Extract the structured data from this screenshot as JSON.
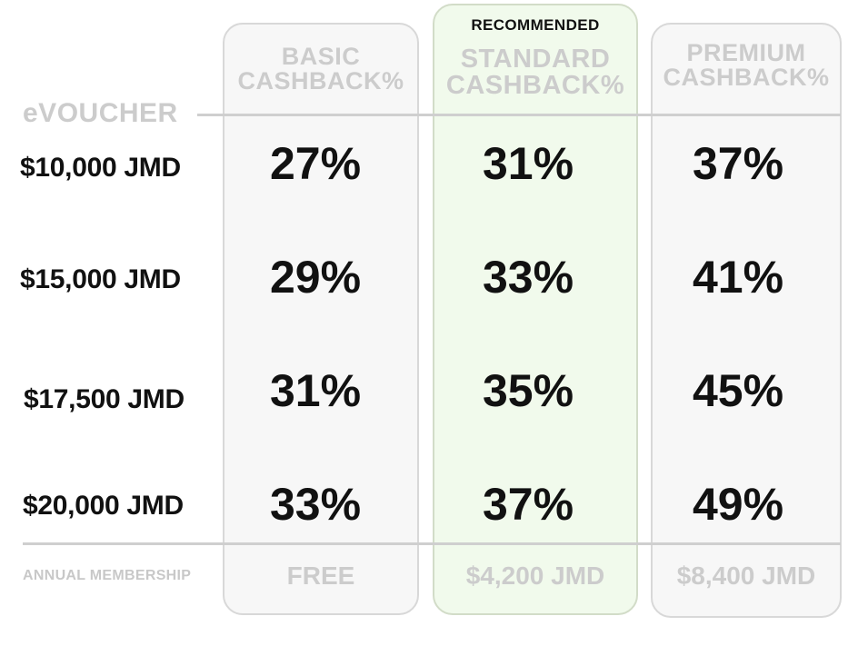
{
  "recommended_label": "RECOMMENDED",
  "row_header": "eVOUCHER",
  "plans": [
    {
      "title_line1": "BASIC",
      "title_line2": "CASHBACK%",
      "membership_price": "FREE",
      "recommended": false
    },
    {
      "title_line1": "STANDARD",
      "title_line2": "CASHBACK%",
      "membership_price": "$4,200 JMD",
      "recommended": true
    },
    {
      "title_line1": "PREMIUM",
      "title_line2": "CASHBACK%",
      "membership_price": "$8,400 JMD",
      "recommended": false
    }
  ],
  "rows": [
    {
      "voucher": "$10,000 JMD",
      "values": [
        "27%",
        "31%",
        "37%"
      ]
    },
    {
      "voucher": "$15,000 JMD",
      "values": [
        "29%",
        "33%",
        "41%"
      ]
    },
    {
      "voucher": "$17,500 JMD",
      "values": [
        "31%",
        "35%",
        "45%"
      ]
    },
    {
      "voucher": "$20,000 JMD",
      "values": [
        "33%",
        "37%",
        "49%"
      ]
    }
  ],
  "membership_label": "ANNUAL MEMBERSHIP",
  "colors": {
    "recommended_background": "#f1faec",
    "muted_text": "#cccccc",
    "primary_text": "#111111"
  }
}
